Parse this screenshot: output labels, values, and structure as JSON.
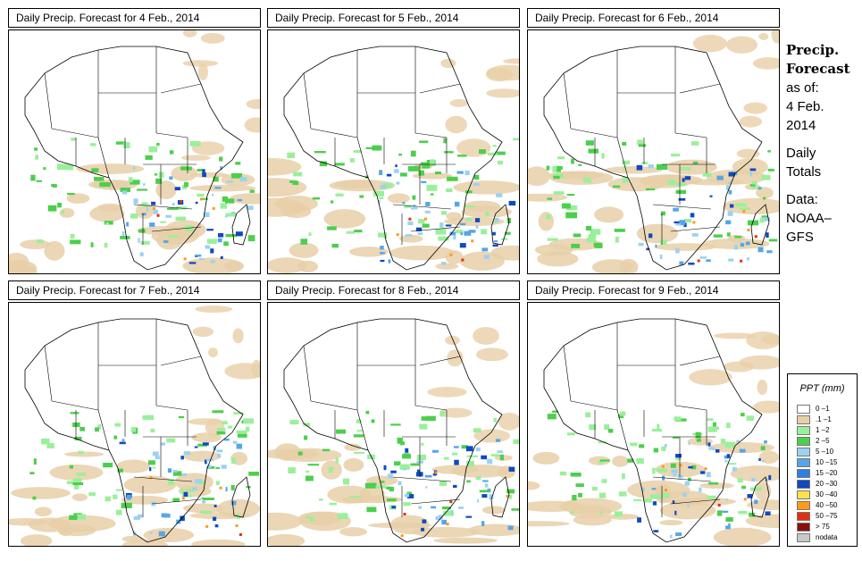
{
  "panels": [
    {
      "title": "Daily Precip. Forecast for  4 Feb., 2014"
    },
    {
      "title": "Daily Precip. Forecast for  5 Feb., 2014"
    },
    {
      "title": "Daily Precip. Forecast for  6 Feb., 2014"
    },
    {
      "title": "Daily Precip. Forecast for  7 Feb., 2014"
    },
    {
      "title": "Daily Precip. Forecast for  8 Feb., 2014"
    },
    {
      "title": "Daily Precip. Forecast for  9 Feb., 2014"
    }
  ],
  "sidebar": {
    "line1": "Precip.",
    "line2": "Forecast",
    "line3": "as of:",
    "line4": "4 Feb.",
    "line5": "2014",
    "line6": "Daily",
    "line7": "Totals",
    "line8": "Data:",
    "line9": "NOAA–",
    "line10": "GFS"
  },
  "legend": {
    "title": "PPT (mm)",
    "items": [
      {
        "label": "0 –1",
        "color": "#ffffff"
      },
      {
        "label": ".1 –1",
        "color": "#e8cfa8"
      },
      {
        "label": "1 –2",
        "color": "#9af09a"
      },
      {
        "label": "2 –5",
        "color": "#4ccf4c"
      },
      {
        "label": "5 –10",
        "color": "#9ad2f2"
      },
      {
        "label": "10 –15",
        "color": "#55a6e8"
      },
      {
        "label": "15 –20",
        "color": "#2f7fe0"
      },
      {
        "label": "20 –30",
        "color": "#1049c0"
      },
      {
        "label": "30 –40",
        "color": "#ffe14d"
      },
      {
        "label": "40 –50",
        "color": "#ff9a1a"
      },
      {
        "label": "50 –75",
        "color": "#e03010"
      },
      {
        "label": "> 75",
        "color": "#8a1010"
      },
      {
        "label": "nodata",
        "color": "#c8c8c8"
      }
    ]
  }
}
